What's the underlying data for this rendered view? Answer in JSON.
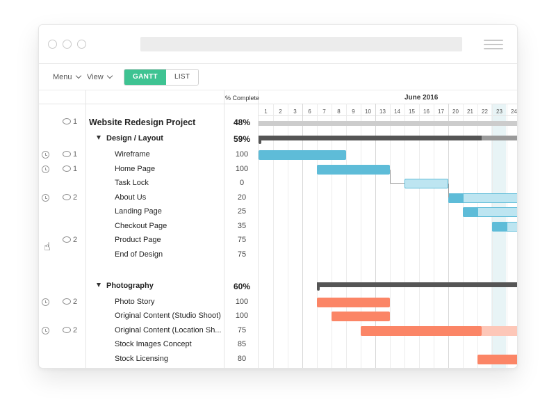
{
  "toolbar": {
    "menu_label": "Menu",
    "view_label": "View",
    "gantt_label": "GANTT",
    "list_label": "LIST"
  },
  "header": {
    "pct_complete": "% Complete",
    "month": "June 2016"
  },
  "days": [
    "1",
    "2",
    "3",
    "6",
    "7",
    "8",
    "9",
    "10",
    "13",
    "14",
    "15",
    "16",
    "17",
    "20",
    "21",
    "22",
    "23",
    "24"
  ],
  "highlight_day": "23",
  "colors": {
    "blue": "#5ebcd8",
    "blue_light": "#bde5f1",
    "salmon": "#fb8566",
    "salmon_light": "#fdc7b8",
    "dark": "#555555",
    "accent": "#3ec392"
  },
  "rows": [
    {
      "label": "Website Redesign Project",
      "pct": "48%",
      "kind": "project",
      "comments": "1",
      "clock": false
    },
    {
      "label": "Design / Layout",
      "pct": "59%",
      "kind": "group",
      "comments": "",
      "clock": false
    },
    {
      "label": "Wireframe",
      "pct": "100",
      "kind": "task",
      "comments": "1",
      "clock": true
    },
    {
      "label": "Home Page",
      "pct": "100",
      "kind": "task",
      "comments": "1",
      "clock": true
    },
    {
      "label": "Task Lock",
      "pct": "0",
      "kind": "task",
      "comments": "",
      "clock": false
    },
    {
      "label": "About Us",
      "pct": "20",
      "kind": "task",
      "comments": "2",
      "clock": true
    },
    {
      "label": "Landing Page",
      "pct": "25",
      "kind": "task",
      "comments": "",
      "clock": false
    },
    {
      "label": "Checkout Page",
      "pct": "35",
      "kind": "task",
      "comments": "",
      "clock": false
    },
    {
      "label": "Product Page",
      "pct": "75",
      "kind": "task",
      "comments": "2",
      "clock": false
    },
    {
      "label": "End of Design",
      "pct": "75",
      "kind": "task",
      "comments": "",
      "clock": false
    },
    {
      "label": "Photography",
      "pct": "60%",
      "kind": "group",
      "comments": "",
      "clock": false
    },
    {
      "label": "Photo Story",
      "pct": "100",
      "kind": "task",
      "comments": "2",
      "clock": true
    },
    {
      "label": "Original Content (Studio Shoot)",
      "pct": "100",
      "kind": "task",
      "comments": "",
      "clock": false
    },
    {
      "label": "Original Content (Location Sh...",
      "pct": "75",
      "kind": "task",
      "comments": "2",
      "clock": true
    },
    {
      "label": "Stock Images Concept",
      "pct": "85",
      "kind": "task",
      "comments": "",
      "clock": false
    },
    {
      "label": "Stock Licensing",
      "pct": "80",
      "kind": "task",
      "comments": "",
      "clock": false
    }
  ]
}
